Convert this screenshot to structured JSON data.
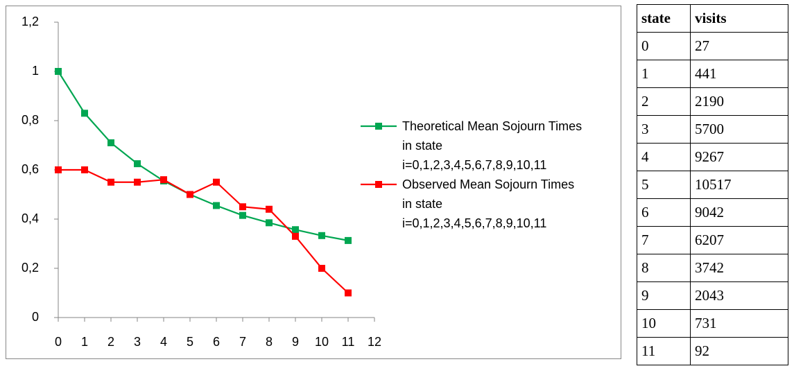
{
  "chart_data": {
    "type": "line",
    "x": [
      0,
      1,
      2,
      3,
      4,
      5,
      6,
      7,
      8,
      9,
      10,
      11
    ],
    "xlim": [
      0,
      12
    ],
    "xticks": [
      0,
      1,
      2,
      3,
      4,
      5,
      6,
      7,
      8,
      9,
      10,
      11,
      12
    ],
    "ylim": [
      0,
      1.2
    ],
    "yticks": [
      0,
      {
        "value": 0.2,
        "label": "0,2"
      },
      {
        "value": 0.4,
        "label": "0,4"
      },
      {
        "value": 0.6,
        "label": "0,6"
      },
      {
        "value": 0.8,
        "label": "0,8"
      },
      1,
      {
        "value": 1.2,
        "label": "1,2"
      }
    ],
    "grid": false,
    "series": [
      {
        "name": "Theoretical Mean Sojourn Times in state i=0,1,2,3,4,5,6,7,8,9,10,11",
        "color": "#00a651",
        "values": [
          1,
          0.83,
          0.71,
          0.625,
          0.555,
          0.5,
          0.455,
          0.415,
          0.385,
          0.357,
          0.333,
          0.313
        ]
      },
      {
        "name": "Observed Mean Sojourn Times in state i=0,1,2,3,4,5,6,7,8,9,10,11",
        "color": "#ff0000",
        "values": [
          0.6,
          0.6,
          0.55,
          0.55,
          0.56,
          0.5,
          0.55,
          0.45,
          0.44,
          0.33,
          0.2,
          0.1
        ]
      }
    ]
  },
  "table": {
    "header": [
      "state",
      "visits"
    ],
    "rows": [
      [
        0,
        27
      ],
      [
        1,
        441
      ],
      [
        2,
        2190
      ],
      [
        3,
        5700
      ],
      [
        4,
        9267
      ],
      [
        5,
        10517
      ],
      [
        6,
        9042
      ],
      [
        7,
        6207
      ],
      [
        8,
        3742
      ],
      [
        9,
        2043
      ],
      [
        10,
        731
      ],
      [
        11,
        92
      ]
    ]
  }
}
